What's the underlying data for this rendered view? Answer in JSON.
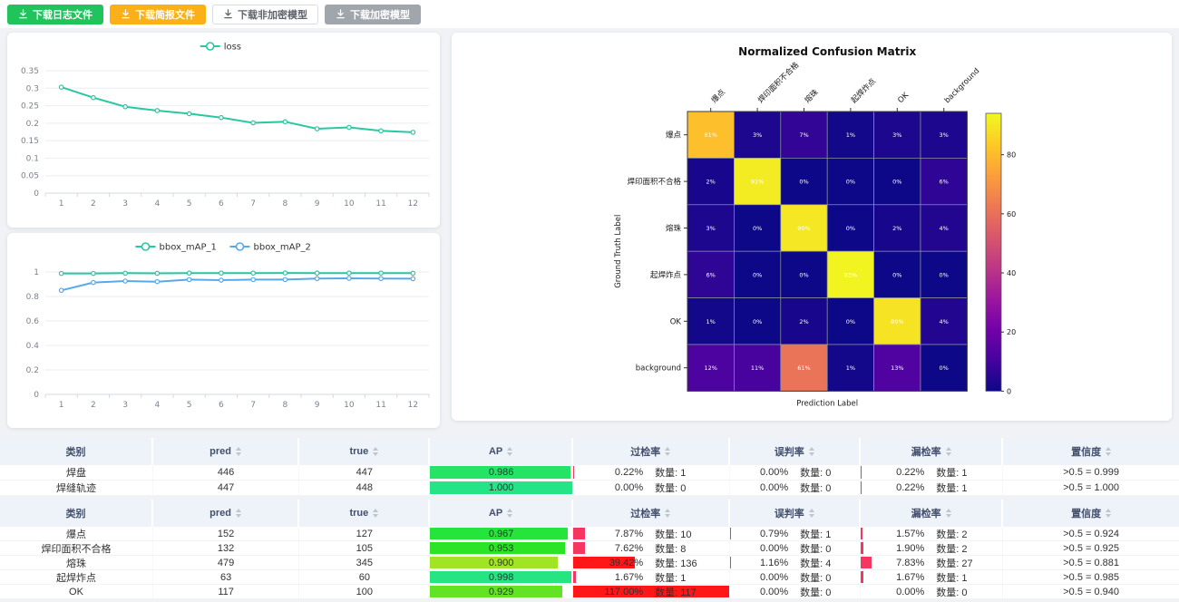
{
  "toolbar": {
    "buttons": [
      {
        "name": "download-log-file-button",
        "label": "下载日志文件",
        "style": "green",
        "color": "#21c45c",
        "icon": "download-icon"
      },
      {
        "name": "download-report-file-button",
        "label": "下载简报文件",
        "style": "orange",
        "color": "#fcb017",
        "icon": "download-icon"
      },
      {
        "name": "download-unencrypted-model-button",
        "label": "下载非加密模型",
        "style": "plain",
        "color": "#ffffff",
        "icon": "download-icon"
      },
      {
        "name": "download-encrypted-model-button",
        "label": "下载加密模型",
        "style": "gray",
        "color": "#a1a6ac",
        "icon": "download-icon"
      }
    ]
  },
  "chart_data": [
    {
      "type": "line",
      "name": "loss-chart",
      "title": "",
      "x": [
        "1",
        "2",
        "3",
        "4",
        "5",
        "6",
        "7",
        "8",
        "9",
        "10",
        "11",
        "12"
      ],
      "series": [
        {
          "name": "loss",
          "color": "#2bc7a2",
          "values": [
            0.303,
            0.273,
            0.247,
            0.236,
            0.227,
            0.216,
            0.201,
            0.204,
            0.184,
            0.188,
            0.178,
            0.174
          ]
        }
      ],
      "ylim": [
        0,
        0.35
      ],
      "yticks": [
        "0",
        "0.05",
        "0.1",
        "0.15",
        "0.2",
        "0.25",
        "0.3",
        "0.35"
      ],
      "legend_position": "top",
      "grid": true
    },
    {
      "type": "line",
      "name": "bbox-map-chart",
      "title": "",
      "x": [
        "1",
        "2",
        "3",
        "4",
        "5",
        "6",
        "7",
        "8",
        "9",
        "10",
        "11",
        "12"
      ],
      "series": [
        {
          "name": "bbox_mAP_1",
          "color": "#2bc7a2",
          "values": [
            0.988,
            0.988,
            0.99,
            0.989,
            0.991,
            0.991,
            0.991,
            0.992,
            0.991,
            0.991,
            0.991,
            0.99
          ]
        },
        {
          "name": "bbox_mAP_2",
          "color": "#57a9ea",
          "values": [
            0.85,
            0.914,
            0.926,
            0.921,
            0.938,
            0.933,
            0.938,
            0.938,
            0.946,
            0.948,
            0.946,
            0.945
          ]
        }
      ],
      "ylim": [
        0,
        1
      ],
      "yticks": [
        "0",
        "0.2",
        "0.4",
        "0.6",
        "0.8",
        "1"
      ],
      "legend_position": "top",
      "grid": true
    },
    {
      "type": "heatmap",
      "name": "confusion-matrix",
      "title": "Normalized Confusion Matrix",
      "xlabel": "Prediction Label",
      "ylabel": "Ground Truth Label",
      "labels": [
        "爆点",
        "焊印面积不合格",
        "熔珠",
        "起焊炸点",
        "OK",
        "background"
      ],
      "rows": [
        [
          81,
          3,
          7,
          1,
          3,
          3
        ],
        [
          2,
          91,
          0,
          0,
          0,
          6
        ],
        [
          3,
          0,
          90,
          0,
          2,
          4
        ],
        [
          6,
          0,
          0,
          93,
          0,
          0
        ],
        [
          1,
          0,
          2,
          0,
          89,
          4
        ],
        [
          12,
          11,
          61,
          1,
          13,
          0
        ]
      ],
      "cell_suffix": "%",
      "vmax": 94,
      "colorbar_ticks": [
        0,
        20,
        40,
        60,
        80
      ],
      "colormap": "plasma",
      "legend_position": "right"
    }
  ],
  "tables": [
    {
      "qty_prefix": "数量:",
      "headers": [
        {
          "label": "类别",
          "sortable": false
        },
        {
          "label": "pred",
          "sortable": true
        },
        {
          "label": "true",
          "sortable": true
        },
        {
          "label": "AP",
          "sortable": true
        },
        {
          "label": "过检率",
          "sortable": true
        },
        {
          "label": "误判率",
          "sortable": true
        },
        {
          "label": "漏检率",
          "sortable": true
        },
        {
          "label": "置信度",
          "sortable": true
        }
      ],
      "rows": [
        {
          "cat": "焊盘",
          "pred": "446",
          "true": "447",
          "ap": "0.986",
          "ap_value": 0.986,
          "rates": [
            {
              "pct": "0.22%",
              "qty": "1",
              "bar": 0.22
            },
            {
              "pct": "0.00%",
              "qty": "0",
              "bar": 0
            },
            {
              "pct": "0.22%",
              "qty": "1",
              "bar": 0.22
            }
          ],
          "conf": ">0.5 = 0.999"
        },
        {
          "cat": "焊缝轨迹",
          "pred": "447",
          "true": "448",
          "ap": "1.000",
          "ap_value": 1.0,
          "rates": [
            {
              "pct": "0.00%",
              "qty": "0",
              "bar": 0
            },
            {
              "pct": "0.00%",
              "qty": "0",
              "bar": 0
            },
            {
              "pct": "0.22%",
              "qty": "1",
              "bar": 0.22
            }
          ],
          "conf": ">0.5 = 1.000"
        }
      ]
    },
    {
      "qty_prefix": "数量:",
      "headers": [
        {
          "label": "类别",
          "sortable": false
        },
        {
          "label": "pred",
          "sortable": true
        },
        {
          "label": "true",
          "sortable": true
        },
        {
          "label": "AP",
          "sortable": true
        },
        {
          "label": "过检率",
          "sortable": true
        },
        {
          "label": "误判率",
          "sortable": true
        },
        {
          "label": "漏检率",
          "sortable": true
        },
        {
          "label": "置信度",
          "sortable": true
        }
      ],
      "rows": [
        {
          "cat": "爆点",
          "pred": "152",
          "true": "127",
          "ap": "0.967",
          "ap_value": 0.967,
          "rates": [
            {
              "pct": "7.87%",
              "qty": "10",
              "bar": 7.87
            },
            {
              "pct": "0.79%",
              "qty": "1",
              "bar": 0.79
            },
            {
              "pct": "1.57%",
              "qty": "2",
              "bar": 1.57
            }
          ],
          "conf": ">0.5 = 0.924"
        },
        {
          "cat": "焊印面积不合格",
          "pred": "132",
          "true": "105",
          "ap": "0.953",
          "ap_value": 0.953,
          "rates": [
            {
              "pct": "7.62%",
              "qty": "8",
              "bar": 7.62
            },
            {
              "pct": "0.00%",
              "qty": "0",
              "bar": 0
            },
            {
              "pct": "1.90%",
              "qty": "2",
              "bar": 1.9
            }
          ],
          "conf": ">0.5 = 0.925"
        },
        {
          "cat": "熔珠",
          "pred": "479",
          "true": "345",
          "ap": "0.900",
          "ap_value": 0.9,
          "rates": [
            {
              "pct": "39.42%",
              "qty": "136",
              "bar": 39.42
            },
            {
              "pct": "1.16%",
              "qty": "4",
              "bar": 1.16
            },
            {
              "pct": "7.83%",
              "qty": "27",
              "bar": 7.83
            }
          ],
          "conf": ">0.5 = 0.881"
        },
        {
          "cat": "起焊炸点",
          "pred": "63",
          "true": "60",
          "ap": "0.998",
          "ap_value": 0.998,
          "rates": [
            {
              "pct": "1.67%",
              "qty": "1",
              "bar": 1.67
            },
            {
              "pct": "0.00%",
              "qty": "0",
              "bar": 0
            },
            {
              "pct": "1.67%",
              "qty": "1",
              "bar": 1.67
            }
          ],
          "conf": ">0.5 = 0.985"
        },
        {
          "cat": "OK",
          "pred": "117",
          "true": "100",
          "ap": "0.929",
          "ap_value": 0.929,
          "rates": [
            {
              "pct": "117.00%",
              "qty": "117",
              "bar": 117
            },
            {
              "pct": "0.00%",
              "qty": "0",
              "bar": 0
            },
            {
              "pct": "0.00%",
              "qty": "0",
              "bar": 0
            }
          ],
          "conf": ">0.5 = 0.940"
        }
      ]
    }
  ],
  "colors": {
    "bar_red": "#f5365f",
    "bar_red_strong": "#ff1717",
    "series_teal": "#2bc7a2",
    "series_blue": "#57a9ea",
    "header_bg": "#eef2f9",
    "page_bg": "#f0f2f5"
  }
}
